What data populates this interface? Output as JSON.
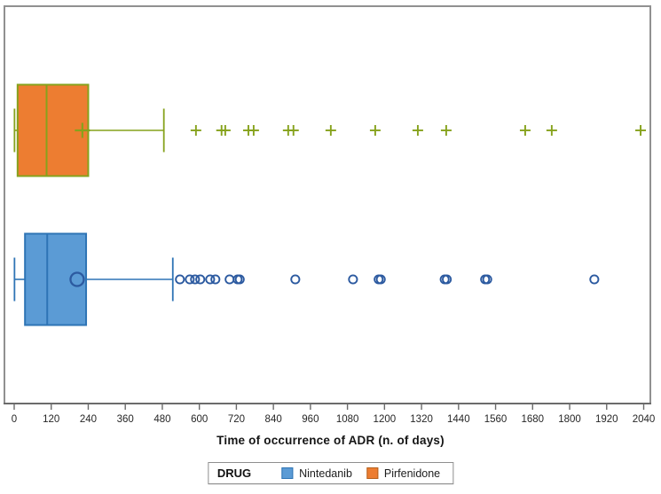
{
  "chart_data": {
    "type": "boxplot",
    "orientation": "horizontal",
    "title": "",
    "xlabel": "Time of occurrence of ADR (n. of days)",
    "ylabel": "",
    "grid": false,
    "x_axis": {
      "min": 0,
      "max": 2040,
      "tick_step": 120,
      "tick_labels": [
        "0",
        "120",
        "240",
        "360",
        "480",
        "600",
        "720",
        "840",
        "960",
        "1080",
        "1200",
        "1320",
        "1440",
        "1560",
        "1680",
        "1800",
        "1920",
        "2040"
      ]
    },
    "series": [
      {
        "name": "Pirfenidone",
        "row": "top",
        "box_fill": "#ED7D31",
        "line_color": "#86A21C",
        "marker_color": "#86A21C",
        "marker": "plus",
        "stats": {
          "whisker_low": 1,
          "q1": 11,
          "median": 105,
          "q3": 240,
          "whisker_high": 485,
          "mean": 221
        },
        "outliers": [
          589,
          672,
          684,
          759,
          776,
          888,
          905,
          1026,
          1170,
          1308,
          1400,
          1656,
          1742,
          2030
        ]
      },
      {
        "name": "Nintedanib",
        "row": "bottom",
        "box_fill": "#5B9BD5",
        "line_color": "#2E74B5",
        "marker_color": "#2C5AA0",
        "marker": "circle",
        "stats": {
          "whisker_low": 1,
          "q1": 35,
          "median": 107,
          "q3": 233,
          "whisker_high": 514,
          "mean": 204
        },
        "outliers": [
          537,
          569,
          586,
          603,
          635,
          652,
          698,
          724,
          731,
          911,
          1098,
          1181,
          1188,
          1395,
          1402,
          1526,
          1533,
          1880
        ]
      }
    ],
    "legend": {
      "title": "DRUG",
      "position": "bottom",
      "items": [
        {
          "label": "Nintedanib",
          "swatch_fill": "#5B9BD5",
          "swatch_border": "#2E74B5"
        },
        {
          "label": "Pirfenidone",
          "swatch_fill": "#ED7D31",
          "swatch_border": "#B55F1B"
        }
      ]
    }
  },
  "style_colors": {
    "plot_border": "#909090",
    "axis_line": "#6b6b6b",
    "tick_line": "#6b6b6b",
    "tick_label": "#262626"
  }
}
